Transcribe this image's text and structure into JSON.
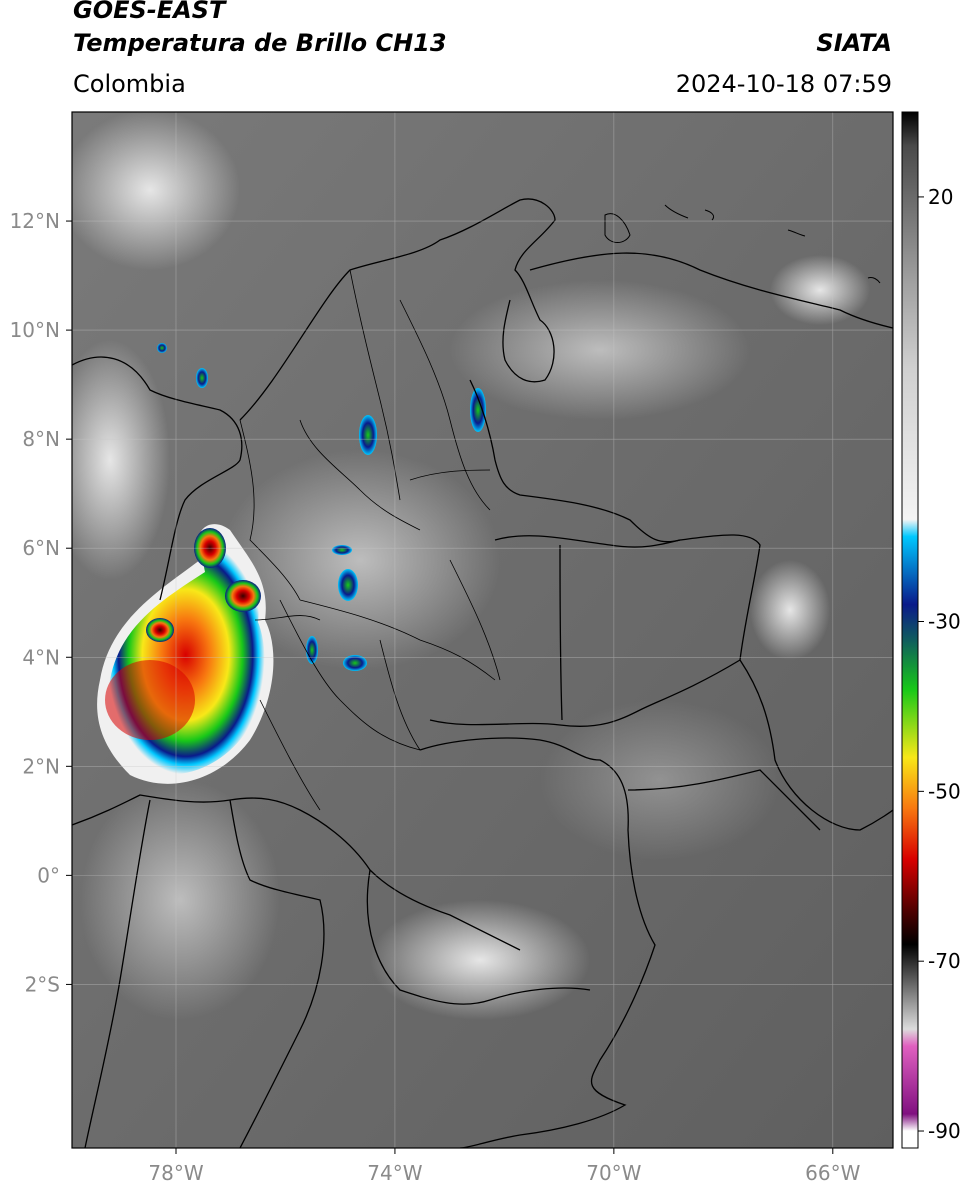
{
  "header": {
    "satellite": "GOES-EAST",
    "product": "Temperatura de Brillo CH13",
    "region": "Colombia",
    "source": "SIATA",
    "datetime": "2024-10-18 07:59"
  },
  "map": {
    "lon_range": [
      -79.9,
      -64.9
    ],
    "lat_range": [
      -5.0,
      14.0
    ],
    "lon_ticks": [
      {
        "value": -78,
        "label": "78°W"
      },
      {
        "value": -74,
        "label": "74°W"
      },
      {
        "value": -70,
        "label": "70°W"
      },
      {
        "value": -66,
        "label": "66°W"
      }
    ],
    "lat_ticks": [
      {
        "value": 12,
        "label": "12°N"
      },
      {
        "value": 10,
        "label": "10°N"
      },
      {
        "value": 8,
        "label": "8°N"
      },
      {
        "value": 6,
        "label": "6°N"
      },
      {
        "value": 4,
        "label": "4°N"
      },
      {
        "value": 2,
        "label": "2°N"
      },
      {
        "value": 0,
        "label": "0°"
      },
      {
        "value": -2,
        "label": "2°S"
      }
    ],
    "gridlines": true
  },
  "colorbar": {
    "range": [
      -92,
      30
    ],
    "ticks": [
      {
        "value": 20,
        "label": "20"
      },
      {
        "value": -30,
        "label": "-30"
      },
      {
        "value": -50,
        "label": "-50"
      },
      {
        "value": -70,
        "label": "-70"
      },
      {
        "value": -90,
        "label": "-90"
      }
    ],
    "colors": {
      "warm_top": "#4a4a4a",
      "mid": "#a0a0a0",
      "cold_white": "#f4f4f4",
      "cyan": "#00c8ff",
      "blue": "#0a1a8a",
      "green": "#18c818",
      "yellow": "#f8e818",
      "orange": "#f87810",
      "red": "#d80000",
      "darkred": "#500000",
      "black": "#000000",
      "pink": "#e060c0",
      "purple": "#801080"
    }
  }
}
